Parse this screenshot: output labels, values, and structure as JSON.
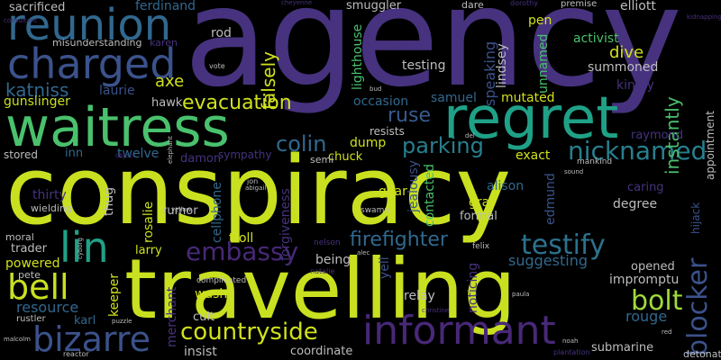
{
  "background": "#000000",
  "palette": {
    "indigo": "#46327e",
    "violet": "#482878",
    "blue": "#365c8d",
    "slate": "#31688e",
    "steel": "#3b528b",
    "teal": "#277f8e",
    "cyan": "#1fa187",
    "green": "#4ac16d",
    "lime": "#a0da39",
    "yellow": "#d0e11c",
    "gray": "#bdbdbd"
  },
  "words": [
    {
      "text": "agency",
      "color": "#46327e"
    },
    {
      "text": "conspiracy",
      "color": "#c9e020"
    },
    {
      "text": "travelling",
      "color": "#c9e020"
    },
    {
      "text": "waitress",
      "color": "#4ac16d"
    },
    {
      "text": "regret",
      "color": "#1fa187"
    },
    {
      "text": "reunion",
      "color": "#31688e"
    },
    {
      "text": "charged",
      "color": "#3b528b"
    },
    {
      "text": "informant",
      "color": "#482878"
    },
    {
      "text": "bizarre",
      "color": "#3b528b"
    },
    {
      "text": "countryside",
      "color": "#d0e11c"
    },
    {
      "text": "lin",
      "color": "#1fa187"
    },
    {
      "text": "bell",
      "color": "#c9e020"
    },
    {
      "text": "embassy",
      "color": "#482878"
    },
    {
      "text": "testify",
      "color": "#2c728e"
    },
    {
      "text": "firefighter",
      "color": "#31688e"
    },
    {
      "text": "bolt",
      "color": "#a0da39"
    },
    {
      "text": "nicknamed",
      "color": "#277f8e"
    },
    {
      "text": "blocker",
      "color": "#3b528b"
    },
    {
      "text": "colin",
      "color": "#31688e"
    },
    {
      "text": "ruse",
      "color": "#365c8d"
    },
    {
      "text": "parking",
      "color": "#277f8e"
    },
    {
      "text": "evacuation",
      "color": "#d0e11c"
    },
    {
      "text": "katniss",
      "color": "#31688e"
    },
    {
      "text": "gunslinger",
      "color": "#c9e020"
    },
    {
      "text": "sacrificed",
      "color": "#bdbdbd"
    },
    {
      "text": "ferdinand",
      "color": "#31688e"
    },
    {
      "text": "axe",
      "color": "#d0e11c"
    },
    {
      "text": "laurie",
      "color": "#3b528b"
    },
    {
      "text": "hawk",
      "color": "#bdbdbd"
    },
    {
      "text": "rod",
      "color": "#bdbdbd"
    },
    {
      "text": "misunderstanding",
      "color": "#bdbdbd"
    },
    {
      "text": "karen",
      "color": "#46327e"
    },
    {
      "text": "lighthouse",
      "color": "#4ac16d"
    },
    {
      "text": "lindsey",
      "color": "#bdbdbd"
    },
    {
      "text": "speaking",
      "color": "#3b528b"
    },
    {
      "text": "smuggler",
      "color": "#bdbdbd"
    },
    {
      "text": "dare",
      "color": "#bdbdbd"
    },
    {
      "text": "dorothy",
      "color": "#46327e"
    },
    {
      "text": "pen",
      "color": "#d0e11c"
    },
    {
      "text": "premise",
      "color": "#bdbdbd"
    },
    {
      "text": "elliott",
      "color": "#bdbdbd"
    },
    {
      "text": "cheyenne",
      "color": "#46327e"
    },
    {
      "text": "activist",
      "color": "#4ac16d"
    },
    {
      "text": "unnamed",
      "color": "#4ac16d"
    },
    {
      "text": "testing",
      "color": "#bdbdbd"
    },
    {
      "text": "dive",
      "color": "#d0e11c"
    },
    {
      "text": "summoned",
      "color": "#bdbdbd"
    },
    {
      "text": "mutated",
      "color": "#d0e11c"
    },
    {
      "text": "kindly",
      "color": "#46327e"
    },
    {
      "text": "instantly",
      "color": "#4ac16d"
    },
    {
      "text": "appointment",
      "color": "#bdbdbd"
    },
    {
      "text": "raymond",
      "color": "#46327e"
    },
    {
      "text": "samuel",
      "color": "#31688e"
    },
    {
      "text": "occasion",
      "color": "#31688e"
    },
    {
      "text": "resists",
      "color": "#bdbdbd"
    },
    {
      "text": "falsely",
      "color": "#d0e11c"
    },
    {
      "text": "stored",
      "color": "#bdbdbd"
    },
    {
      "text": "inn",
      "color": "#31688e"
    },
    {
      "text": "twelve",
      "color": "#31688e"
    },
    {
      "text": "damon",
      "color": "#46327e"
    },
    {
      "text": "sympathy",
      "color": "#46327e"
    },
    {
      "text": "dump",
      "color": "#d0e11c"
    },
    {
      "text": "chuck",
      "color": "#d0e11c"
    },
    {
      "text": "semi",
      "color": "#bdbdbd"
    },
    {
      "text": "exact",
      "color": "#d0e11c"
    },
    {
      "text": "mankind",
      "color": "#bdbdbd"
    },
    {
      "text": "thirty",
      "color": "#46327e"
    },
    {
      "text": "wielding",
      "color": "#bdbdbd"
    },
    {
      "text": "cellphone",
      "color": "#31688e"
    },
    {
      "text": "rosalie",
      "color": "#c9e020"
    },
    {
      "text": "thug",
      "color": "#bdbdbd"
    },
    {
      "text": "rumor",
      "color": "#bdbdbd"
    },
    {
      "text": "forgiveness",
      "color": "#46327e"
    },
    {
      "text": "jealousy",
      "color": "#3b528b"
    },
    {
      "text": "contacted",
      "color": "#4ac16d"
    },
    {
      "text": "gray",
      "color": "#d0e11c"
    },
    {
      "text": "alison",
      "color": "#31688e"
    },
    {
      "text": "formal",
      "color": "#bdbdbd"
    },
    {
      "text": "edmund",
      "color": "#3b528b"
    },
    {
      "text": "degree",
      "color": "#bdbdbd"
    },
    {
      "text": "caring",
      "color": "#46327e"
    },
    {
      "text": "hijack",
      "color": "#3b528b"
    },
    {
      "text": "gear",
      "color": "#d0e11c"
    },
    {
      "text": "swamp",
      "color": "#bdbdbd"
    },
    {
      "text": "moral",
      "color": "#bdbdbd"
    },
    {
      "text": "trader",
      "color": "#bdbdbd"
    },
    {
      "text": "powered",
      "color": "#d0e11c"
    },
    {
      "text": "pete",
      "color": "#bdbdbd"
    },
    {
      "text": "larry",
      "color": "#d0e11c"
    },
    {
      "text": "troll",
      "color": "#d0e11c"
    },
    {
      "text": "keeper",
      "color": "#d0e11c"
    },
    {
      "text": "merchant",
      "color": "#46327e"
    },
    {
      "text": "resource",
      "color": "#31688e"
    },
    {
      "text": "karl",
      "color": "#31688e"
    },
    {
      "text": "rustler",
      "color": "#bdbdbd"
    },
    {
      "text": "wash",
      "color": "#d0e11c"
    },
    {
      "text": "cult",
      "color": "#bdbdbd"
    },
    {
      "text": "being",
      "color": "#bdbdbd"
    },
    {
      "text": "nelson",
      "color": "#46327e"
    },
    {
      "text": "yell",
      "color": "#3b528b"
    },
    {
      "text": "noticing",
      "color": "#46327e"
    },
    {
      "text": "relay",
      "color": "#bdbdbd"
    },
    {
      "text": "suggesting",
      "color": "#31688e"
    },
    {
      "text": "opened",
      "color": "#bdbdbd"
    },
    {
      "text": "impromptu",
      "color": "#bdbdbd"
    },
    {
      "text": "rouge",
      "color": "#31688e"
    },
    {
      "text": "submarine",
      "color": "#bdbdbd"
    },
    {
      "text": "insist",
      "color": "#bdbdbd"
    },
    {
      "text": "coordinate",
      "color": "#bdbdbd"
    },
    {
      "text": "plantation",
      "color": "#46327e"
    },
    {
      "text": "detonate",
      "color": "#bdbdbd"
    },
    {
      "text": "reactor",
      "color": "#bdbdbd"
    },
    {
      "text": "felix",
      "color": "#bdbdbd"
    },
    {
      "text": "complicated",
      "color": "#bdbdbd"
    },
    {
      "text": "natalie",
      "color": "#46327e"
    },
    {
      "text": "puzzle",
      "color": "#bdbdbd"
    },
    {
      "text": "noah",
      "color": "#bdbdbd"
    },
    {
      "text": "christine",
      "color": "#46327e"
    },
    {
      "text": "paula",
      "color": "#bdbdbd"
    },
    {
      "text": "malcolm",
      "color": "#bdbdbd"
    },
    {
      "text": "vote",
      "color": "#bdbdbd"
    },
    {
      "text": "bud",
      "color": "#bdbdbd"
    },
    {
      "text": "del",
      "color": "#bdbdbd"
    },
    {
      "text": "sound",
      "color": "#bdbdbd"
    },
    {
      "text": "elephant",
      "color": "#bdbdbd"
    },
    {
      "text": "jon",
      "color": "#bdbdbd"
    },
    {
      "text": "abigail",
      "color": "#bdbdbd"
    },
    {
      "text": "yellow",
      "color": "#bdbdbd"
    },
    {
      "text": "cyborg",
      "color": "#bdbdbd"
    },
    {
      "text": "alec",
      "color": "#bdbdbd"
    },
    {
      "text": "red",
      "color": "#bdbdbd"
    },
    {
      "text": "kidnapping",
      "color": "#46327e"
    },
    {
      "text": "consultant",
      "color": "#46327e"
    },
    {
      "text": "object",
      "color": "#46327e"
    }
  ]
}
